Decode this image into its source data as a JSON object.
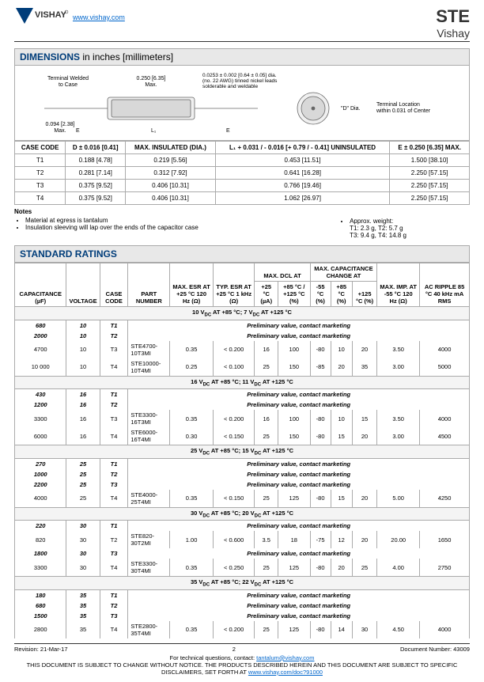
{
  "header": {
    "url": "www.vishay.com",
    "title": "STE",
    "subtitle": "Vishay"
  },
  "dimensions": {
    "heading_bold": "DIMENSIONS",
    "heading_rest": " in inches [millimeters]",
    "diagram_labels": {
      "terminal": "Terminal Welded\nto Case",
      "top_dim": "0.250 [6.35]\nMax.",
      "lead_note": "0.0253 ± 0.002 [0.64 ± 0.05] dia.\n(no. 22 AWG) tinned nickel leads\nsolderable and weldable",
      "side_dim": "0.094 [2.38]\nMax.",
      "d_dia": "\"D\" Dia.",
      "terminal_loc": "Terminal Location\nwithin 0.031 of Center"
    },
    "columns": [
      "CASE CODE",
      "D ± 0.016 [0.41]",
      "MAX. INSULATED (DIA.)",
      "L₁ + 0.031 / - 0.016 [+ 0.79 / - 0.41] UNINSULATED",
      "E ± 0.250 [6.35] MAX."
    ],
    "rows": [
      [
        "T1",
        "0.188 [4.78]",
        "0.219 [5.56]",
        "0.453 [11.51]",
        "1.500 [38.10]"
      ],
      [
        "T2",
        "0.281 [7.14]",
        "0.312 [7.92]",
        "0.641 [16.28]",
        "2.250 [57.15]"
      ],
      [
        "T3",
        "0.375 [9.52]",
        "0.406 [10.31]",
        "0.766 [19.46]",
        "2.250 [57.15]"
      ],
      [
        "T4",
        "0.375 [9.52]",
        "0.406 [10.31]",
        "1.062 [26.97]",
        "2.250 [57.15]"
      ]
    ]
  },
  "notes": {
    "heading": "Notes",
    "left": [
      "Material at egress is tantalum",
      "Insulation sleeving will lap over the ends of the capacitor case"
    ],
    "right_label": "Approx. weight:",
    "right_lines": [
      "T1: 2.3 g, T2: 5.7 g",
      "T3: 9.4 g, T4: 14.8 g"
    ]
  },
  "ratings": {
    "heading": "STANDARD RATINGS",
    "headers": [
      "CAPACITANCE (µF)",
      "VOLTAGE",
      "CASE CODE",
      "PART NUMBER",
      "MAX. ESR AT +25 °C 120 Hz (Ω)",
      "TYP. ESR AT +25 °C 1 kHz (Ω)",
      "+25 °C (µA)",
      "+85 °C / +125 °C (%)",
      "-55 °C (%)",
      "+85 °C (%)",
      "+125 °C (%)",
      "MAX. IMP. AT -55 °C 120 Hz (Ω)",
      "AC RIPPLE 85 °C 40 kHz mA RMS"
    ],
    "group_headers": {
      "dcl": "MAX. DCL AT",
      "capchange": "MAX. CAPACITANCE CHANGE AT"
    },
    "sections": [
      {
        "title": "10 V_DC AT +85 °C; 7 V_DC AT +125 °C",
        "rows": [
          {
            "prelim": true,
            "c": "680",
            "v": "10",
            "cc": "T1"
          },
          {
            "prelim": true,
            "c": "2000",
            "v": "10",
            "cc": "T2"
          },
          {
            "c": "4700",
            "v": "10",
            "cc": "T3",
            "pn": "STE4700-10T3MI",
            "esr": "0.35",
            "typesr": "< 0.200",
            "dcl25": "16",
            "dcl85": "100",
            "m55": "-80",
            "p85": "10",
            "p125": "20",
            "imp": "3.50",
            "rip": "4000"
          },
          {
            "c": "10 000",
            "v": "10",
            "cc": "T4",
            "pn": "STE10000-10T4MI",
            "esr": "0.25",
            "typesr": "< 0.100",
            "dcl25": "25",
            "dcl85": "150",
            "m55": "-85",
            "p85": "20",
            "p125": "35",
            "imp": "3.00",
            "rip": "5000"
          }
        ]
      },
      {
        "title": "16 V_DC AT +85 °C; 11 V_DC AT +125 °C",
        "rows": [
          {
            "prelim": true,
            "c": "430",
            "v": "16",
            "cc": "T1"
          },
          {
            "prelim": true,
            "c": "1200",
            "v": "16",
            "cc": "T2"
          },
          {
            "c": "3300",
            "v": "16",
            "cc": "T3",
            "pn": "STE3300-16T3MI",
            "esr": "0.35",
            "typesr": "< 0.200",
            "dcl25": "16",
            "dcl85": "100",
            "m55": "-80",
            "p85": "10",
            "p125": "15",
            "imp": "3.50",
            "rip": "4000"
          },
          {
            "c": "6000",
            "v": "16",
            "cc": "T4",
            "pn": "STE6000-16T4MI",
            "esr": "0.30",
            "typesr": "< 0.150",
            "dcl25": "25",
            "dcl85": "150",
            "m55": "-80",
            "p85": "15",
            "p125": "20",
            "imp": "3.00",
            "rip": "4500"
          }
        ]
      },
      {
        "title": "25 V_DC AT +85 °C; 15 V_DC AT +125 °C",
        "rows": [
          {
            "prelim": true,
            "c": "270",
            "v": "25",
            "cc": "T1"
          },
          {
            "prelim": true,
            "c": "1000",
            "v": "25",
            "cc": "T2"
          },
          {
            "prelim": true,
            "c": "2200",
            "v": "25",
            "cc": "T3"
          },
          {
            "c": "4000",
            "v": "25",
            "cc": "T4",
            "pn": "STE4000-25T4MI",
            "esr": "0.35",
            "typesr": "< 0.150",
            "dcl25": "25",
            "dcl85": "125",
            "m55": "-80",
            "p85": "15",
            "p125": "20",
            "imp": "5.00",
            "rip": "4250"
          }
        ]
      },
      {
        "title": "30 V_DC AT +85 °C; 20 V_DC AT +125 °C",
        "rows": [
          {
            "prelim": true,
            "c": "220",
            "v": "30",
            "cc": "T1"
          },
          {
            "c": "820",
            "v": "30",
            "cc": "T2",
            "pn": "STE820-30T2MI",
            "esr": "1.00",
            "typesr": "< 0.600",
            "dcl25": "3.5",
            "dcl85": "18",
            "m55": "-75",
            "p85": "12",
            "p125": "20",
            "imp": "20.00",
            "rip": "1650"
          },
          {
            "prelim": true,
            "c": "1800",
            "v": "30",
            "cc": "T3"
          },
          {
            "c": "3300",
            "v": "30",
            "cc": "T4",
            "pn": "STE3300-30T4MI",
            "esr": "0.35",
            "typesr": "< 0.250",
            "dcl25": "25",
            "dcl85": "125",
            "m55": "-80",
            "p85": "20",
            "p125": "25",
            "imp": "4.00",
            "rip": "2750"
          }
        ]
      },
      {
        "title": "35 V_DC AT +85 °C; 22 V_DC AT +125 °C",
        "rows": [
          {
            "prelim": true,
            "c": "180",
            "v": "35",
            "cc": "T1"
          },
          {
            "prelim": true,
            "c": "680",
            "v": "35",
            "cc": "T2"
          },
          {
            "prelim": true,
            "c": "1500",
            "v": "35",
            "cc": "T3"
          },
          {
            "c": "2800",
            "v": "35",
            "cc": "T4",
            "pn": "STE2800-35T4MI",
            "esr": "0.35",
            "typesr": "< 0.200",
            "dcl25": "25",
            "dcl85": "125",
            "m55": "-80",
            "p85": "14",
            "p125": "30",
            "imp": "4.50",
            "rip": "4000"
          }
        ]
      }
    ],
    "prelim_text": "Preliminary value, contact marketing"
  },
  "footer": {
    "revision": "Revision: 21-Mar-17",
    "page": "2",
    "docnum": "Document Number: 43009",
    "contact_pre": "For technical questions, contact: ",
    "contact_email": "tantalum@vishay.com",
    "disclaimer": "THIS DOCUMENT IS SUBJECT TO CHANGE WITHOUT NOTICE. THE PRODUCTS DESCRIBED HEREIN AND THIS DOCUMENT ARE SUBJECT TO SPECIFIC DISCLAIMERS, SET FORTH AT ",
    "disclaimer_link": "www.vishay.com/doc?91000"
  }
}
